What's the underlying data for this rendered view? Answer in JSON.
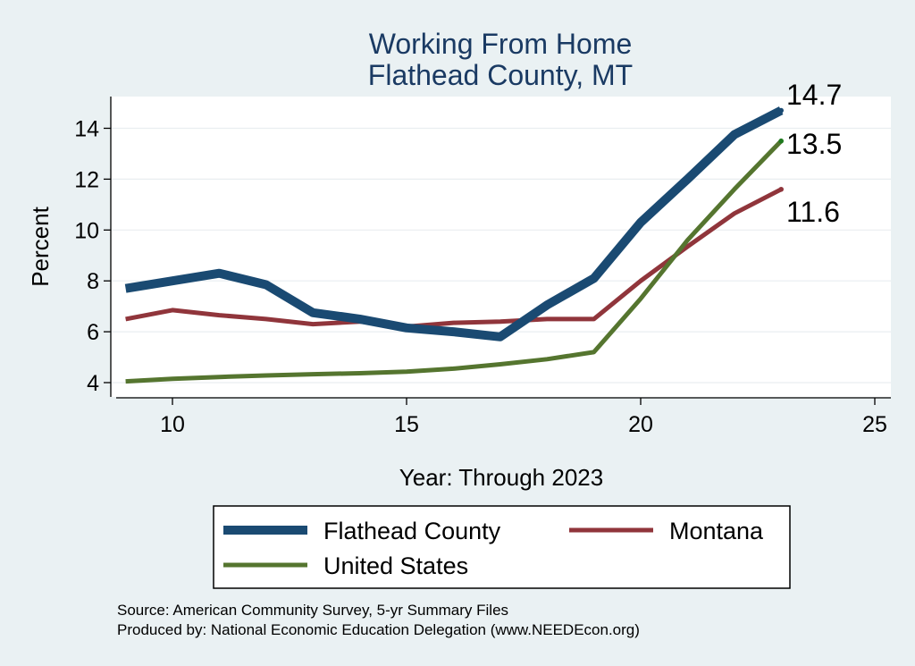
{
  "chart_data": {
    "type": "line",
    "title": [
      "Working From Home",
      "Flathead County, MT"
    ],
    "xlabel": "Year: Through 2023",
    "ylabel": "Percent",
    "xlim": [
      9,
      25
    ],
    "ylim": [
      3.5,
      15.3
    ],
    "xticks": [
      10,
      15,
      20,
      25
    ],
    "yticks": [
      4,
      6,
      8,
      10,
      12,
      14
    ],
    "grid": true,
    "legend_position": "bottom",
    "series": [
      {
        "name": "Flathead County",
        "color": "#1a4a72",
        "x": [
          9,
          10,
          11,
          12,
          13,
          14,
          15,
          16,
          17,
          18,
          19,
          20,
          21,
          22,
          23
        ],
        "values": [
          7.7,
          8.0,
          8.3,
          7.85,
          6.75,
          6.5,
          6.15,
          6.0,
          5.8,
          7.05,
          8.1,
          10.3,
          12.0,
          13.75,
          14.7
        ],
        "end_label": "14.7"
      },
      {
        "name": "Montana",
        "color": "#90353b",
        "x": [
          9,
          10,
          11,
          12,
          13,
          14,
          15,
          16,
          17,
          18,
          19,
          20,
          21,
          22,
          23
        ],
        "values": [
          6.5,
          6.85,
          6.65,
          6.5,
          6.3,
          6.4,
          6.2,
          6.35,
          6.4,
          6.5,
          6.5,
          8.0,
          9.35,
          10.65,
          11.6
        ],
        "end_label": "11.6"
      },
      {
        "name": "United States",
        "color": "#55752f",
        "x": [
          9,
          10,
          11,
          12,
          13,
          14,
          15,
          16,
          17,
          18,
          19,
          20,
          21,
          22,
          23
        ],
        "values": [
          4.05,
          4.15,
          4.22,
          4.28,
          4.33,
          4.37,
          4.43,
          4.55,
          4.72,
          4.92,
          5.2,
          7.3,
          9.6,
          11.6,
          13.5
        ],
        "end_label": "13.5"
      }
    ],
    "notes": [
      "Source: American Community Survey, 5-yr Summary Files",
      "Produced by: National Economic Education Delegation (www.NEEDEcon.org)"
    ]
  }
}
